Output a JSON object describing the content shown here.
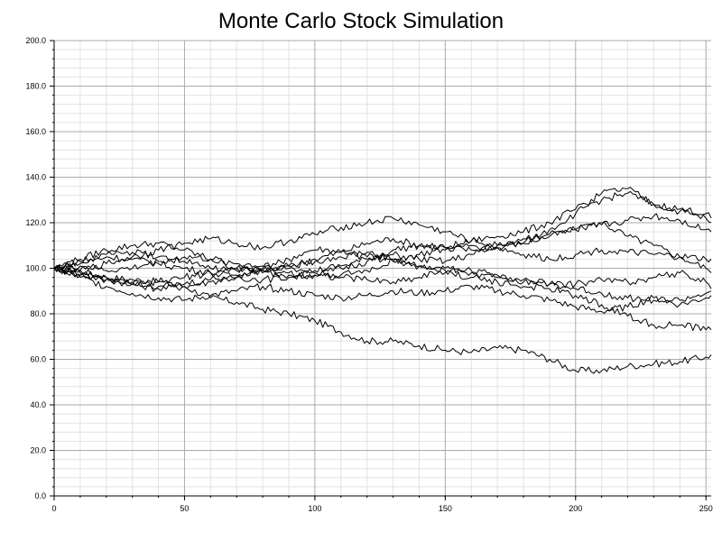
{
  "chart_data": {
    "type": "line",
    "title": "Monte Carlo Stock Simulation",
    "xlabel": "",
    "ylabel": "",
    "xlim": [
      0,
      252
    ],
    "ylim": [
      0,
      200
    ],
    "x_ticks": [
      0,
      50,
      100,
      150,
      200,
      250
    ],
    "x_tick_labels": [
      "0",
      "50",
      "100",
      "150",
      "200",
      "250"
    ],
    "y_ticks": [
      0,
      20,
      40,
      60,
      80,
      100,
      120,
      140,
      160,
      180,
      200
    ],
    "y_tick_labels": [
      "0.0",
      "20.0",
      "40.0",
      "60.0",
      "80.0",
      "100.0",
      "120.0",
      "140.0",
      "160.0",
      "180.0",
      "200.0"
    ],
    "grid": true,
    "minor_grid": true,
    "legend": "none",
    "line_color": "#000000",
    "series": [
      {
        "x": [
          0,
          10,
          20,
          30,
          40,
          50,
          60,
          70,
          80,
          90,
          100,
          110,
          120,
          130,
          140,
          150,
          160,
          170,
          180,
          190,
          200,
          210,
          220,
          230,
          240,
          250,
          252
        ],
        "values": [
          100,
          99,
          96,
          95,
          94,
          92,
          87,
          85,
          82,
          80,
          77,
          72,
          68,
          68,
          66,
          64,
          63,
          65,
          64,
          60,
          55,
          55,
          57,
          58,
          59,
          61,
          62
        ]
      },
      {
        "x": [
          0,
          10,
          20,
          30,
          40,
          50,
          60,
          70,
          80,
          90,
          100,
          110,
          120,
          130,
          140,
          150,
          160,
          170,
          180,
          190,
          200,
          210,
          220,
          230,
          240,
          250,
          252
        ],
        "values": [
          100,
          97,
          95,
          93,
          91,
          92,
          94,
          96,
          99,
          101,
          104,
          107,
          111,
          113,
          110,
          109,
          108,
          110,
          111,
          114,
          117,
          120,
          114,
          110,
          105,
          100,
          98
        ]
      },
      {
        "x": [
          0,
          10,
          20,
          30,
          40,
          50,
          60,
          70,
          80,
          90,
          100,
          110,
          120,
          130,
          140,
          150,
          160,
          170,
          180,
          190,
          200,
          210,
          220,
          230,
          240,
          250,
          252
        ],
        "values": [
          100,
          104,
          108,
          110,
          111,
          108,
          104,
          100,
          98,
          97,
          99,
          101,
          104,
          108,
          110,
          109,
          112,
          114,
          116,
          120,
          126,
          130,
          133,
          128,
          126,
          124,
          122
        ]
      },
      {
        "x": [
          0,
          10,
          20,
          30,
          40,
          50,
          60,
          70,
          80,
          90,
          100,
          110,
          120,
          130,
          140,
          150,
          160,
          170,
          180,
          190,
          200,
          210,
          220,
          230,
          240,
          250,
          252
        ],
        "values": [
          100,
          102,
          105,
          104,
          102,
          100,
          98,
          96,
          95,
          96,
          97,
          100,
          103,
          106,
          104,
          103,
          106,
          109,
          111,
          117,
          124,
          133,
          135,
          128,
          125,
          122,
          120
        ]
      },
      {
        "x": [
          0,
          10,
          20,
          30,
          40,
          50,
          60,
          70,
          80,
          90,
          100,
          110,
          120,
          130,
          140,
          150,
          160,
          170,
          180,
          190,
          200,
          210,
          220,
          230,
          240,
          250,
          252
        ],
        "values": [
          100,
          99,
          102,
          105,
          108,
          111,
          113,
          111,
          109,
          112,
          115,
          118,
          120,
          122,
          119,
          116,
          112,
          110,
          113,
          115,
          117,
          119,
          121,
          123,
          121,
          117,
          116
        ]
      },
      {
        "x": [
          0,
          10,
          20,
          30,
          40,
          50,
          60,
          70,
          80,
          90,
          100,
          110,
          120,
          130,
          140,
          150,
          160,
          170,
          180,
          190,
          200,
          210,
          220,
          230,
          240,
          250,
          252
        ],
        "values": [
          100,
          101,
          99,
          100,
          103,
          105,
          104,
          102,
          101,
          100,
          98,
          97,
          99,
          103,
          106,
          108,
          110,
          109,
          106,
          104,
          106,
          108,
          107,
          106,
          105,
          104,
          104
        ]
      },
      {
        "x": [
          0,
          10,
          20,
          30,
          40,
          50,
          60,
          70,
          80,
          90,
          100,
          110,
          120,
          130,
          140,
          150,
          160,
          170,
          180,
          190,
          200,
          210,
          220,
          230,
          240,
          250,
          252
        ],
        "values": [
          100,
          97,
          95,
          93,
          94,
          96,
          98,
          100,
          99,
          98,
          97,
          96,
          95,
          94,
          96,
          100,
          99,
          97,
          95,
          93,
          91,
          89,
          87,
          86,
          86,
          89,
          90
        ]
      },
      {
        "x": [
          0,
          10,
          20,
          30,
          40,
          50,
          60,
          70,
          80,
          90,
          100,
          110,
          120,
          130,
          140,
          150,
          160,
          170,
          180,
          190,
          200,
          210,
          220,
          230,
          240,
          250,
          252
        ],
        "values": [
          100,
          98,
          96,
          94,
          92,
          93,
          95,
          97,
          99,
          101,
          103,
          105,
          107,
          104,
          101,
          98,
          96,
          94,
          92,
          91,
          88,
          84,
          79,
          75,
          75,
          73,
          73
        ]
      },
      {
        "x": [
          0,
          10,
          20,
          30,
          40,
          50,
          60,
          70,
          80,
          90,
          100,
          110,
          120,
          130,
          140,
          150,
          160,
          170,
          180,
          190,
          200,
          210,
          220,
          230,
          240,
          250,
          252
        ],
        "values": [
          100,
          96,
          92,
          89,
          87,
          86,
          88,
          90,
          92,
          90,
          88,
          87,
          88,
          90,
          89,
          90,
          92,
          90,
          88,
          86,
          83,
          81,
          83,
          87,
          84,
          87,
          88
        ]
      },
      {
        "x": [
          0,
          10,
          20,
          30,
          40,
          50,
          60,
          70,
          80,
          90,
          100,
          110,
          120,
          130,
          140,
          150,
          160,
          170,
          180,
          190,
          200,
          210,
          220,
          230,
          240,
          250,
          252
        ],
        "values": [
          100,
          103,
          106,
          107,
          105,
          103,
          100,
          99,
          100,
          104,
          108,
          107,
          105,
          103,
          101,
          99,
          98,
          96,
          94,
          93,
          93,
          95,
          94,
          96,
          98,
          94,
          91
        ]
      }
    ]
  }
}
